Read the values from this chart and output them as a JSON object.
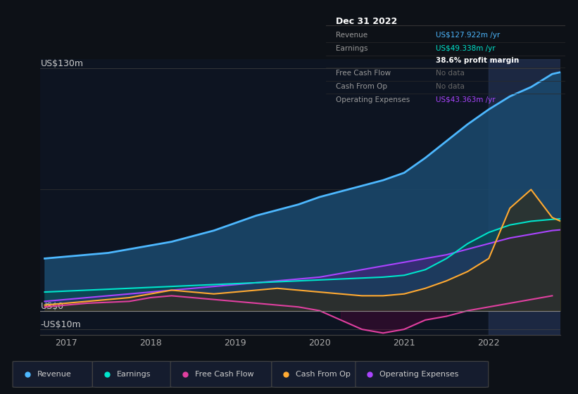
{
  "background_color": "#0d1117",
  "plot_bg_color": "#0d1421",
  "ylabel_top": "US$130m",
  "ylabel_zero": "US$0",
  "ylabel_neg": "-US$10m",
  "xlim": [
    2016.7,
    2022.85
  ],
  "ylim": [
    -13,
    135
  ],
  "xticks": [
    2017,
    2018,
    2019,
    2020,
    2021,
    2022
  ],
  "legend_items": [
    {
      "label": "Revenue",
      "color": "#4db8ff"
    },
    {
      "label": "Earnings",
      "color": "#00e5cc"
    },
    {
      "label": "Free Cash Flow",
      "color": "#e040a0"
    },
    {
      "label": "Cash From Op",
      "color": "#ffaa33"
    },
    {
      "label": "Operating Expenses",
      "color": "#aa44ff"
    }
  ],
  "tooltip_title": "Dec 31 2022",
  "tooltip_rows": [
    {
      "label": "Revenue",
      "value": "US$127.922m /yr",
      "value_color": "#4db8ff",
      "bold": false
    },
    {
      "label": "Earnings",
      "value": "US$49.338m /yr",
      "value_color": "#00e5cc",
      "bold": false
    },
    {
      "label": "",
      "value": "38.6% profit margin",
      "value_color": "#ffffff",
      "bold": true
    },
    {
      "label": "Free Cash Flow",
      "value": "No data",
      "value_color": "#666666",
      "bold": false
    },
    {
      "label": "Cash From Op",
      "value": "No data",
      "value_color": "#666666",
      "bold": false
    },
    {
      "label": "Operating Expenses",
      "value": "US$43.363m /yr",
      "value_color": "#aa44ff",
      "bold": false
    }
  ],
  "revenue_x": [
    2016.75,
    2017.0,
    2017.25,
    2017.5,
    2017.75,
    2018.0,
    2018.25,
    2018.5,
    2018.75,
    2019.0,
    2019.25,
    2019.5,
    2019.75,
    2020.0,
    2020.25,
    2020.5,
    2020.75,
    2021.0,
    2021.25,
    2021.5,
    2021.75,
    2022.0,
    2022.25,
    2022.5,
    2022.75,
    2022.85
  ],
  "revenue_y": [
    28,
    29,
    30,
    31,
    33,
    35,
    37,
    40,
    43,
    47,
    51,
    54,
    57,
    61,
    64,
    67,
    70,
    74,
    82,
    91,
    100,
    108,
    115,
    120,
    127,
    128
  ],
  "revenue_color": "#4db8ff",
  "revenue_fill": "#1a4a6e",
  "earnings_x": [
    2016.75,
    2017.0,
    2017.25,
    2017.5,
    2017.75,
    2018.0,
    2018.25,
    2018.5,
    2018.75,
    2019.0,
    2019.25,
    2019.5,
    2019.75,
    2020.0,
    2020.25,
    2020.5,
    2020.75,
    2021.0,
    2021.25,
    2021.5,
    2021.75,
    2022.0,
    2022.25,
    2022.5,
    2022.75,
    2022.85
  ],
  "earnings_y": [
    10,
    10.5,
    11,
    11.5,
    12,
    12.5,
    13,
    13.5,
    14,
    14.5,
    15,
    15.5,
    16,
    16.5,
    17,
    17.5,
    18,
    19,
    22,
    28,
    36,
    42,
    46,
    48,
    49,
    49.3
  ],
  "earnings_color": "#00e5cc",
  "fcf_x": [
    2016.75,
    2017.0,
    2017.25,
    2017.5,
    2017.75,
    2018.0,
    2018.25,
    2018.5,
    2018.75,
    2019.0,
    2019.25,
    2019.5,
    2019.75,
    2020.0,
    2020.25,
    2020.5,
    2020.75,
    2021.0,
    2021.25,
    2021.5,
    2021.75,
    2022.0,
    2022.25,
    2022.5,
    2022.75
  ],
  "fcf_y": [
    2,
    3,
    4,
    4.5,
    5,
    7,
    8,
    7,
    6,
    5,
    4,
    3,
    2,
    0,
    -5,
    -10,
    -12,
    -10,
    -5,
    -3,
    0,
    2,
    4,
    6,
    8
  ],
  "fcf_color": "#e040a0",
  "cop_x": [
    2016.75,
    2017.0,
    2017.25,
    2017.5,
    2017.75,
    2018.0,
    2018.25,
    2018.5,
    2018.75,
    2019.0,
    2019.25,
    2019.5,
    2019.75,
    2020.0,
    2020.25,
    2020.5,
    2020.75,
    2021.0,
    2021.25,
    2021.5,
    2021.75,
    2022.0,
    2022.25,
    2022.5,
    2022.75,
    2022.85
  ],
  "cop_y": [
    3,
    4,
    5,
    6,
    7,
    9,
    11,
    10,
    9,
    10,
    11,
    12,
    11,
    10,
    9,
    8,
    8,
    9,
    12,
    16,
    21,
    28,
    55,
    65,
    50,
    48
  ],
  "cop_color": "#ffaa33",
  "opex_x": [
    2016.75,
    2017.0,
    2017.25,
    2017.5,
    2017.75,
    2018.0,
    2018.25,
    2018.5,
    2018.75,
    2019.0,
    2019.25,
    2019.5,
    2019.75,
    2020.0,
    2020.25,
    2020.5,
    2020.75,
    2021.0,
    2021.25,
    2021.5,
    2021.75,
    2022.0,
    2022.25,
    2022.5,
    2022.75,
    2022.85
  ],
  "opex_y": [
    5,
    6,
    7,
    8,
    9,
    10,
    11,
    12,
    13,
    14,
    15,
    16,
    17,
    18,
    20,
    22,
    24,
    26,
    28,
    30,
    33,
    36,
    39,
    41,
    43,
    43.4
  ],
  "opex_color": "#aa44ff",
  "highlight_x": 2022.0,
  "highlight_color": "#2a3a5e"
}
